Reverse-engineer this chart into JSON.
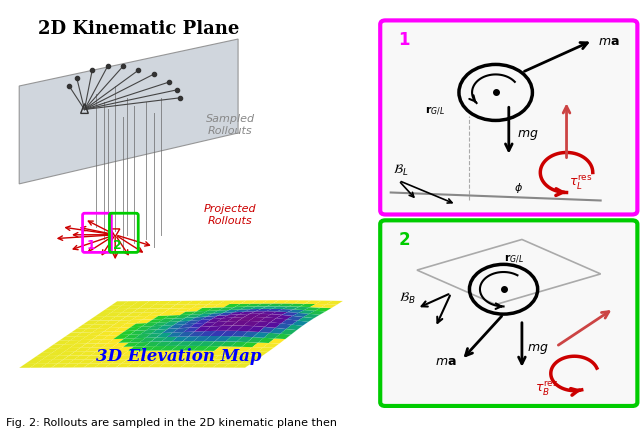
{
  "title": "",
  "caption": "Fig. 2: Rollouts are sampled in the 2D kinematic plane then",
  "background_color": "#ffffff",
  "main_title_2d": "2D Kinematic Plane",
  "main_title_3d": "3D Elevation Map",
  "label_sampled": "Sampled\nRollouts",
  "label_projected": "Projected\nRollouts",
  "box1_color": "#ff00ff",
  "box2_color": "#00cc00",
  "box1_label": "1",
  "box2_label": "2",
  "figsize": [
    6.4,
    4.35
  ],
  "dpi": 100
}
